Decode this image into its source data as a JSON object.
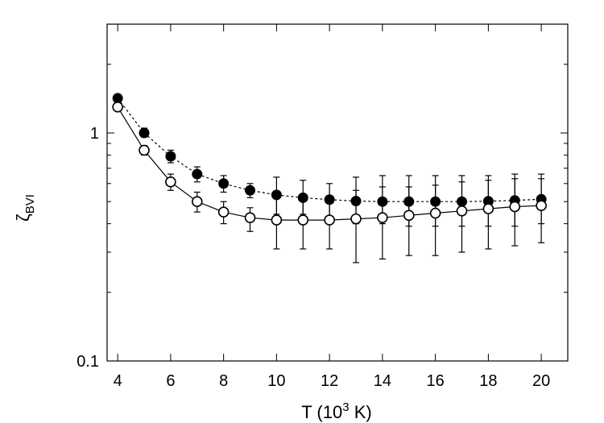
{
  "chart_data": {
    "type": "scatter",
    "x_label": {
      "prefix": "T (10",
      "superscript": "3",
      "suffix": " K)"
    },
    "y_label": {
      "symbol": "ζ",
      "subscript": "BVI"
    },
    "x_range": [
      3.6,
      21.0
    ],
    "y_range": [
      0.1,
      3.0
    ],
    "y_scale": "log",
    "x_ticks": [
      4,
      6,
      8,
      10,
      12,
      14,
      16,
      18,
      20
    ],
    "x_tick_labels": [
      "4",
      "6",
      "8",
      "10",
      "12",
      "14",
      "16",
      "18",
      "20"
    ],
    "y_ticks": [
      0.1,
      1
    ],
    "y_tick_labels": [
      "0.1",
      "1"
    ],
    "grid": false,
    "legend": "none",
    "series": [
      {
        "marker": "filled-circle",
        "line_style": "dotted",
        "color": "#000000",
        "x": [
          4,
          5,
          6,
          7,
          8,
          9,
          10,
          11,
          12,
          13,
          14,
          15,
          16,
          17,
          18,
          19,
          20
        ],
        "y": [
          1.42,
          1.0,
          0.79,
          0.66,
          0.6,
          0.56,
          0.535,
          0.52,
          0.51,
          0.503,
          0.5,
          0.5,
          0.5,
          0.5,
          0.502,
          0.506,
          0.512
        ],
        "y_low": [
          1.37,
          0.96,
          0.74,
          0.61,
          0.55,
          0.52,
          0.44,
          0.44,
          0.43,
          0.4,
          0.4,
          0.39,
          0.39,
          0.39,
          0.39,
          0.39,
          0.4
        ],
        "y_high": [
          1.47,
          1.05,
          0.84,
          0.71,
          0.65,
          0.6,
          0.64,
          0.62,
          0.6,
          0.64,
          0.65,
          0.65,
          0.65,
          0.65,
          0.65,
          0.66,
          0.66
        ]
      },
      {
        "marker": "open-circle",
        "line_style": "solid",
        "color": "#000000",
        "x": [
          4,
          5,
          6,
          7,
          8,
          9,
          10,
          11,
          12,
          13,
          14,
          15,
          16,
          17,
          18,
          19,
          20
        ],
        "y": [
          1.3,
          0.84,
          0.61,
          0.5,
          0.45,
          0.425,
          0.415,
          0.415,
          0.415,
          0.42,
          0.425,
          0.435,
          0.445,
          0.455,
          0.465,
          0.475,
          0.48
        ],
        "y_low": [
          1.25,
          0.8,
          0.56,
          0.45,
          0.4,
          0.37,
          0.31,
          0.31,
          0.31,
          0.27,
          0.28,
          0.29,
          0.29,
          0.3,
          0.31,
          0.32,
          0.33
        ],
        "y_high": [
          1.35,
          0.88,
          0.66,
          0.55,
          0.5,
          0.47,
          0.52,
          0.52,
          0.52,
          0.56,
          0.58,
          0.58,
          0.59,
          0.61,
          0.62,
          0.63,
          0.63
        ]
      }
    ]
  }
}
